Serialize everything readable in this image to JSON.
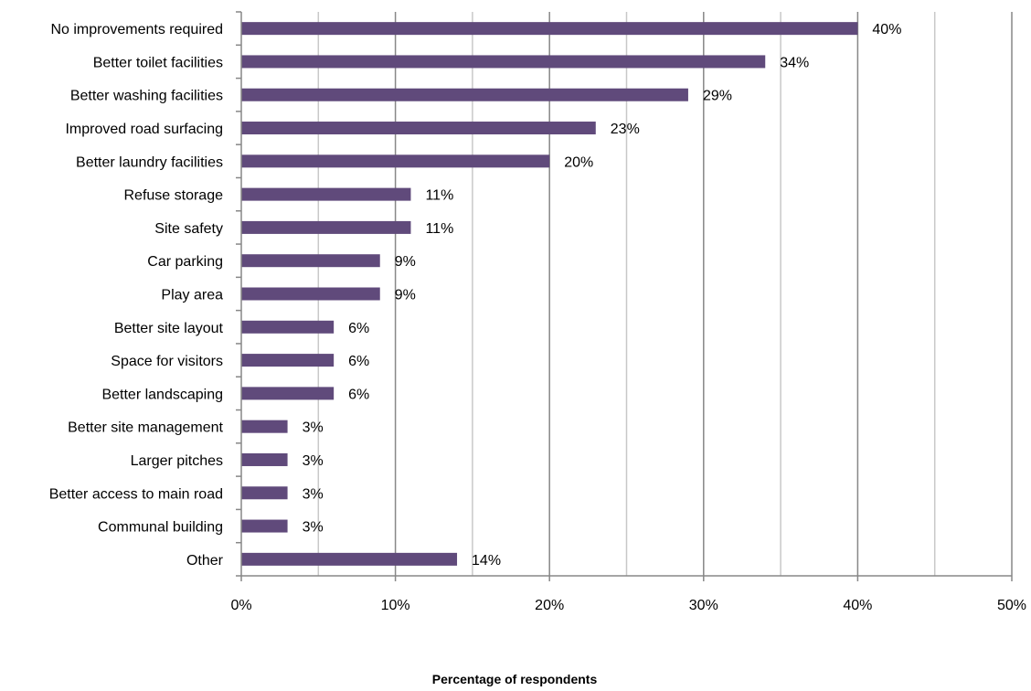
{
  "chart_data": {
    "type": "bar",
    "orientation": "horizontal",
    "categories": [
      "No improvements required",
      "Better toilet facilities",
      "Better washing facilities",
      "Improved road surfacing",
      "Better laundry facilities",
      "Refuse storage",
      "Site safety",
      "Car parking",
      "Play area",
      "Better site layout",
      "Space for visitors",
      "Better landscaping",
      "Better site management",
      "Larger pitches",
      "Better access to main road",
      "Communal building",
      "Other"
    ],
    "values": [
      40,
      34,
      29,
      23,
      20,
      11,
      11,
      9,
      9,
      6,
      6,
      6,
      3,
      3,
      3,
      3,
      14
    ],
    "value_labels": [
      "40%",
      "34%",
      "29%",
      "23%",
      "20%",
      "11%",
      "11%",
      "9%",
      "9%",
      "6%",
      "6%",
      "6%",
      "3%",
      "3%",
      "3%",
      "3%",
      "14%"
    ],
    "xlabel": "Percentage of respondents",
    "xlim": [
      0,
      50
    ],
    "x_ticks": [
      0,
      10,
      20,
      30,
      40,
      50
    ],
    "x_tick_labels": [
      "0%",
      "10%",
      "20%",
      "30%",
      "40%",
      "50%"
    ],
    "minor_gridlines": [
      5,
      15,
      25,
      35,
      45
    ],
    "grid": true,
    "legend": "none",
    "colors": {
      "bar": "#604a7b",
      "major_grid": "#878787",
      "minor_grid": "#c8c8c8",
      "axis": "#878787"
    }
  }
}
